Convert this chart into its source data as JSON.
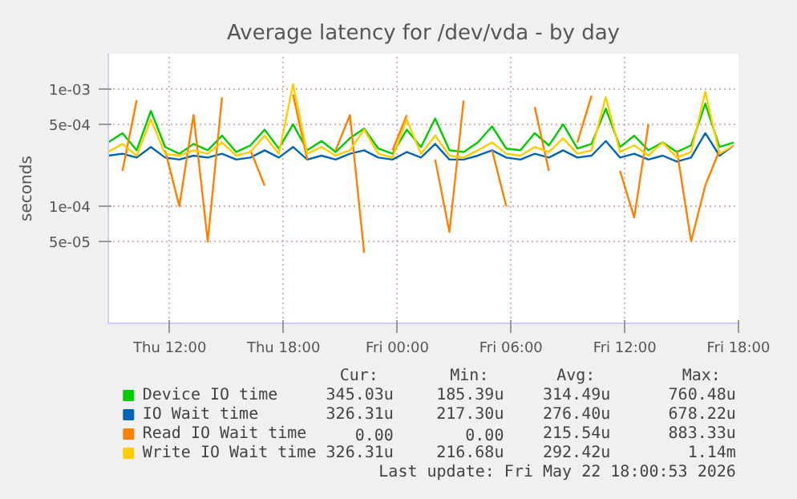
{
  "chart_data": {
    "type": "line",
    "title": "Average latency for /dev/vda - by day",
    "ylabel": "seconds",
    "x": [
      "2026-05-21T08:45",
      "2026-05-21T09:30",
      "2026-05-21T10:15",
      "2026-05-21T11:00",
      "2026-05-21T11:45",
      "2026-05-21T12:30",
      "2026-05-21T13:15",
      "2026-05-21T14:00",
      "2026-05-21T14:45",
      "2026-05-21T15:30",
      "2026-05-21T16:15",
      "2026-05-21T17:00",
      "2026-05-21T17:45",
      "2026-05-21T18:30",
      "2026-05-21T19:15",
      "2026-05-21T20:00",
      "2026-05-21T20:45",
      "2026-05-21T21:30",
      "2026-05-21T22:15",
      "2026-05-21T23:00",
      "2026-05-21T23:45",
      "2026-05-22T00:30",
      "2026-05-22T01:15",
      "2026-05-22T02:00",
      "2026-05-22T02:45",
      "2026-05-22T03:30",
      "2026-05-22T04:15",
      "2026-05-22T05:00",
      "2026-05-22T05:45",
      "2026-05-22T06:30",
      "2026-05-22T07:15",
      "2026-05-22T08:00",
      "2026-05-22T08:45",
      "2026-05-22T09:30",
      "2026-05-22T10:15",
      "2026-05-22T11:00",
      "2026-05-22T11:45",
      "2026-05-22T12:30",
      "2026-05-22T13:15",
      "2026-05-22T14:00",
      "2026-05-22T14:45",
      "2026-05-22T15:30",
      "2026-05-22T16:15",
      "2026-05-22T17:00",
      "2026-05-22T17:45"
    ],
    "series": [
      {
        "name": "Device IO time",
        "color": "#00cc00",
        "values": [
          0.00035,
          0.00042,
          0.0003,
          0.00065,
          0.00032,
          0.00028,
          0.00034,
          0.0003,
          0.0004,
          0.00029,
          0.00033,
          0.00045,
          0.00031,
          0.0005,
          0.0003,
          0.00036,
          0.00029,
          0.00038,
          0.00046,
          0.00031,
          0.00028,
          0.00045,
          0.00032,
          0.00056,
          0.0003,
          0.00029,
          0.00035,
          0.00048,
          0.00031,
          0.0003,
          0.00042,
          0.00033,
          0.0005,
          0.00031,
          0.00034,
          0.00068,
          0.00032,
          0.0004,
          0.0003,
          0.00035,
          0.00029,
          0.00033,
          0.00075,
          0.00032,
          0.00035
        ]
      },
      {
        "name": "IO Wait time",
        "color": "#0066b3",
        "values": [
          0.00027,
          0.00028,
          0.00026,
          0.00032,
          0.00026,
          0.00025,
          0.00027,
          0.00026,
          0.00028,
          0.00025,
          0.00026,
          0.0003,
          0.00026,
          0.00032,
          0.00025,
          0.00027,
          0.00025,
          0.00028,
          0.0003,
          0.00026,
          0.00025,
          0.00029,
          0.00026,
          0.00034,
          0.00025,
          0.00025,
          0.00027,
          0.0003,
          0.00026,
          0.00025,
          0.00028,
          0.00026,
          0.0003,
          0.00026,
          0.00027,
          0.00036,
          0.00026,
          0.00028,
          0.00025,
          0.00027,
          0.00024,
          0.00026,
          0.00042,
          0.00027,
          0.00033
        ]
      },
      {
        "name": "Read IO Wait time",
        "color": "#ff8000",
        "values": [
          null,
          0.0002,
          0.0008,
          null,
          0.0003,
          0.0001,
          0.0006,
          5e-05,
          0.00085,
          null,
          0.0003,
          0.00015,
          null,
          0.0009,
          0.00025,
          null,
          0.0003,
          0.0006,
          4e-05,
          null,
          0.0003,
          0.0006,
          null,
          0.00025,
          6e-05,
          0.0008,
          null,
          0.0003,
          0.0001,
          null,
          0.0007,
          0.0002,
          null,
          0.00035,
          0.00088,
          null,
          0.0002,
          8e-05,
          0.0005,
          null,
          0.0003,
          5e-05,
          0.00015,
          0.0003,
          null
        ]
      },
      {
        "name": "Write IO Wait time",
        "color": "#ffcc00",
        "values": [
          0.00029,
          0.00034,
          0.00027,
          0.00055,
          0.00028,
          0.00027,
          0.0003,
          0.00028,
          0.00035,
          0.00027,
          0.00029,
          0.0004,
          0.00028,
          0.0011,
          0.00028,
          0.00032,
          0.00027,
          0.0003,
          0.00045,
          0.00028,
          0.00026,
          0.00055,
          0.00028,
          0.0004,
          0.00027,
          0.00026,
          0.0003,
          0.00035,
          0.00028,
          0.00027,
          0.00032,
          0.00029,
          0.00038,
          0.00028,
          0.0003,
          0.00085,
          0.00029,
          0.00033,
          0.00027,
          0.00035,
          0.00026,
          0.00029,
          0.00095,
          0.00028,
          0.00033
        ]
      }
    ],
    "xlim": [
      "2026-05-21T08:45",
      "2026-05-22T18:00"
    ],
    "xticks": [
      {
        "value": "2026-05-21T12:00",
        "label": "Thu 12:00"
      },
      {
        "value": "2026-05-21T18:00",
        "label": "Thu 18:00"
      },
      {
        "value": "2026-05-22T00:00",
        "label": "Fri 00:00"
      },
      {
        "value": "2026-05-22T06:00",
        "label": "Fri 06:00"
      },
      {
        "value": "2026-05-22T12:00",
        "label": "Fri 12:00"
      },
      {
        "value": "2026-05-22T18:00",
        "label": "Fri 18:00"
      }
    ],
    "ylim": [
      1e-05,
      0.002
    ],
    "yticks": [
      {
        "value": 5e-05,
        "label": "5e-05"
      },
      {
        "value": 0.0001,
        "label": "1e-04"
      },
      {
        "value": 0.0005,
        "label": "5e-04"
      },
      {
        "value": 0.001,
        "label": "1e-03"
      }
    ],
    "log": true,
    "grid": true,
    "legend": "bottom",
    "annotations": [
      "Cur:",
      "Min:",
      "Avg:",
      "Max:",
      "345.03u",
      "185.39u",
      "314.49u",
      "760.48u",
      "326.31u",
      "217.30u",
      "276.40u",
      "678.22u",
      "0.00",
      "0.00",
      "215.54u",
      "883.33u",
      "326.31u",
      "216.68u",
      "292.42u",
      "1.14m",
      "Last update: Fri May 22 18:00:53 2026"
    ]
  }
}
